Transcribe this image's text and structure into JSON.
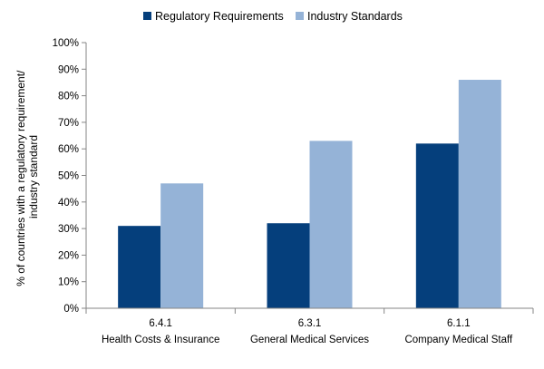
{
  "chart_data": {
    "type": "bar",
    "title": "",
    "xlabel": "",
    "ylabel": "% of countries with a regulatory requirement/ industry standard",
    "ylim": [
      0,
      100
    ],
    "yticks": [
      "0%",
      "10%",
      "20%",
      "30%",
      "40%",
      "50%",
      "60%",
      "70%",
      "80%",
      "90%",
      "100%"
    ],
    "categories": [
      {
        "code": "6.4.1",
        "name": "Health Costs & Insurance"
      },
      {
        "code": "6.3.1",
        "name": "General Medical Services"
      },
      {
        "code": "6.1.1",
        "name": "Company Medical Staff"
      }
    ],
    "series": [
      {
        "name": "Regulatory Requirements",
        "color": "#053F7C",
        "values": [
          31,
          32,
          62
        ]
      },
      {
        "name": "Industry Standards",
        "color": "#95B3D7",
        "values": [
          47,
          63,
          86
        ]
      }
    ],
    "grid": false,
    "legend_position": "top"
  }
}
